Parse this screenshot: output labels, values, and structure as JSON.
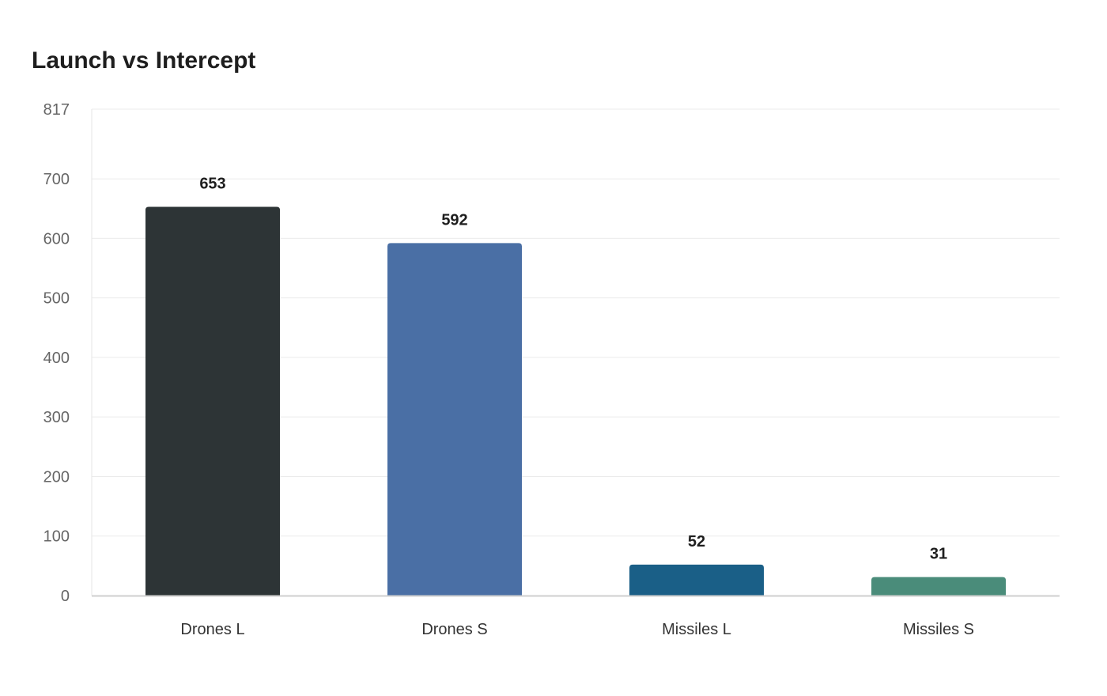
{
  "chart_data": {
    "type": "bar",
    "title": "Launch vs Intercept",
    "xlabel": "",
    "ylabel": "",
    "categories": [
      "Drones L",
      "Drones S",
      "Missiles L",
      "Missiles S"
    ],
    "values": [
      653,
      592,
      52,
      31
    ],
    "colors": [
      "#2d3436",
      "#4a6fa5",
      "#1a5f87",
      "#4a8c7a"
    ],
    "ylim": [
      0,
      817
    ],
    "yticks": [
      0,
      100,
      200,
      300,
      400,
      500,
      600,
      700,
      817
    ],
    "grid": true,
    "data_labels": true
  }
}
